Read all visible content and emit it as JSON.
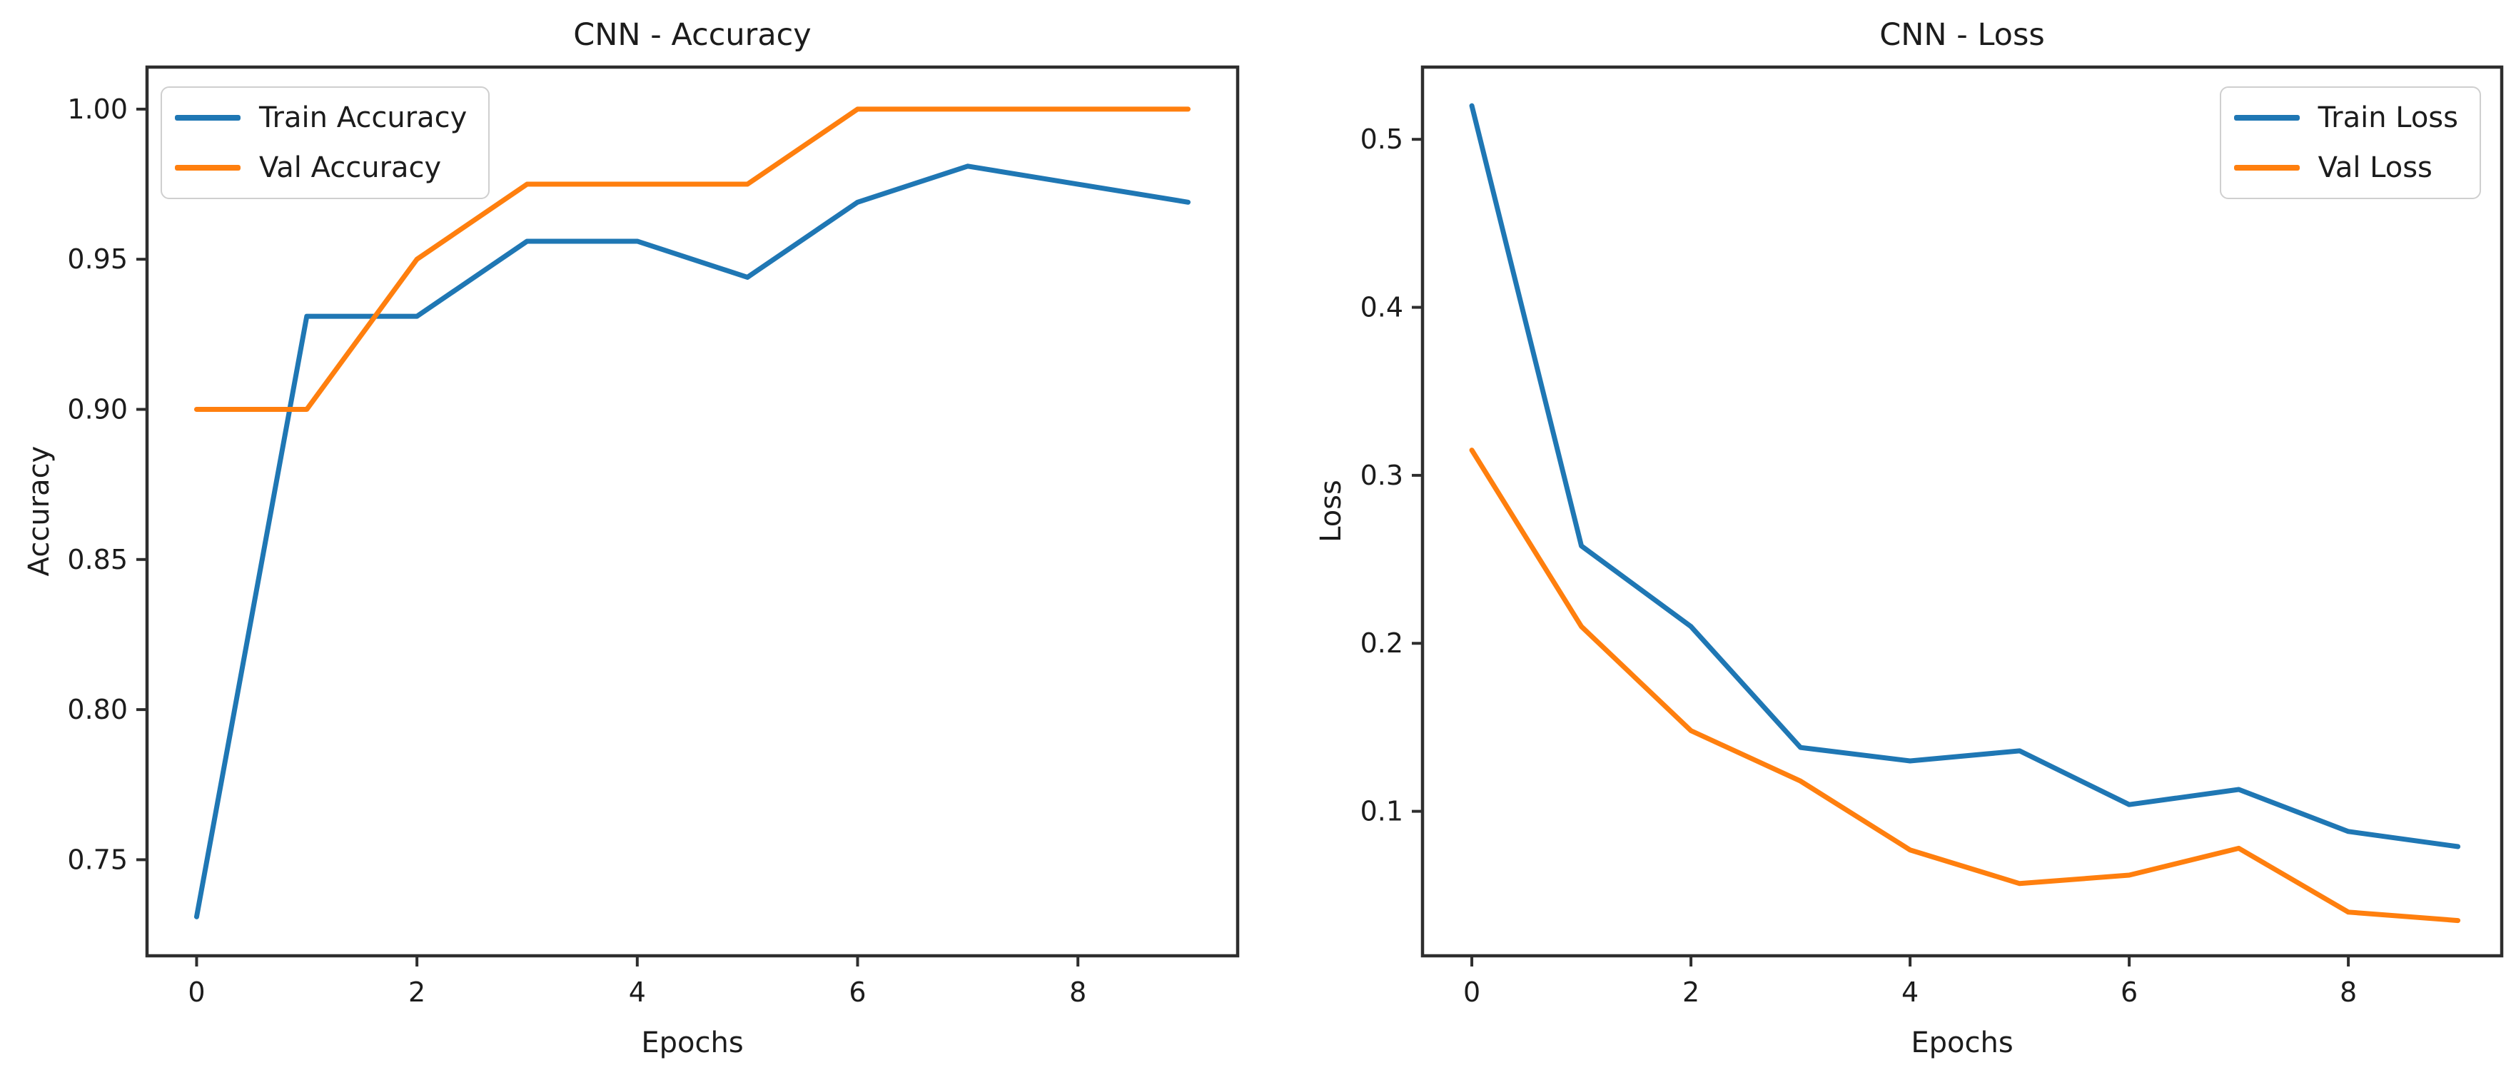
{
  "figure": {
    "background": "#ffffff",
    "text_color": "#1c1c1c",
    "spine_color": "#2e2e2e",
    "series_colors": {
      "train": "#1f77b4",
      "val": "#ff7f0e"
    }
  },
  "chart_data": [
    {
      "type": "line",
      "title": "CNN - Accuracy",
      "xlabel": "Epochs",
      "ylabel": "Accuracy",
      "x": [
        0,
        1,
        2,
        3,
        4,
        5,
        6,
        7,
        8,
        9
      ],
      "series": [
        {
          "name": "Train Accuracy",
          "color": "#1f77b4",
          "values": [
            0.731,
            0.931,
            0.931,
            0.956,
            0.956,
            0.944,
            0.969,
            0.981,
            0.975,
            0.969
          ]
        },
        {
          "name": "Val Accuracy",
          "color": "#ff7f0e",
          "values": [
            0.9,
            0.9,
            0.95,
            0.975,
            0.975,
            0.975,
            1.0,
            1.0,
            1.0,
            1.0
          ]
        }
      ],
      "xlim": [
        -0.45,
        9.45
      ],
      "ylim": [
        0.718,
        1.014
      ],
      "xticks": {
        "values": [
          0,
          2,
          4,
          6,
          8
        ],
        "labels": [
          "0",
          "2",
          "4",
          "6",
          "8"
        ]
      },
      "yticks": {
        "values": [
          0.75,
          0.8,
          0.85,
          0.9,
          0.95,
          1.0
        ],
        "labels": [
          "0.75",
          "0.80",
          "0.85",
          "0.90",
          "0.95",
          "1.00"
        ]
      },
      "legend": {
        "position": "upper-left",
        "entries": [
          "Train Accuracy",
          "Val Accuracy"
        ]
      },
      "grid": false
    },
    {
      "type": "line",
      "title": "CNN - Loss",
      "xlabel": "Epochs",
      "ylabel": "Loss",
      "x": [
        0,
        1,
        2,
        3,
        4,
        5,
        6,
        7,
        8,
        9
      ],
      "series": [
        {
          "name": "Train Loss",
          "color": "#1f77b4",
          "values": [
            0.52,
            0.258,
            0.21,
            0.138,
            0.13,
            0.136,
            0.104,
            0.113,
            0.088,
            0.079
          ]
        },
        {
          "name": "Val Loss",
          "color": "#ff7f0e",
          "values": [
            0.315,
            0.21,
            0.148,
            0.118,
            0.077,
            0.057,
            0.062,
            0.078,
            0.04,
            0.035
          ]
        }
      ],
      "xlim": [
        -0.45,
        9.4
      ],
      "ylim": [
        0.014,
        0.543
      ],
      "xticks": {
        "values": [
          0,
          2,
          4,
          6,
          8
        ],
        "labels": [
          "0",
          "2",
          "4",
          "6",
          "8"
        ]
      },
      "yticks": {
        "values": [
          0.1,
          0.2,
          0.3,
          0.4,
          0.5
        ],
        "labels": [
          "0.1",
          "0.2",
          "0.3",
          "0.4",
          "0.5"
        ]
      },
      "legend": {
        "position": "upper-right",
        "entries": [
          "Train Loss",
          "Val Loss"
        ]
      },
      "grid": false
    }
  ]
}
